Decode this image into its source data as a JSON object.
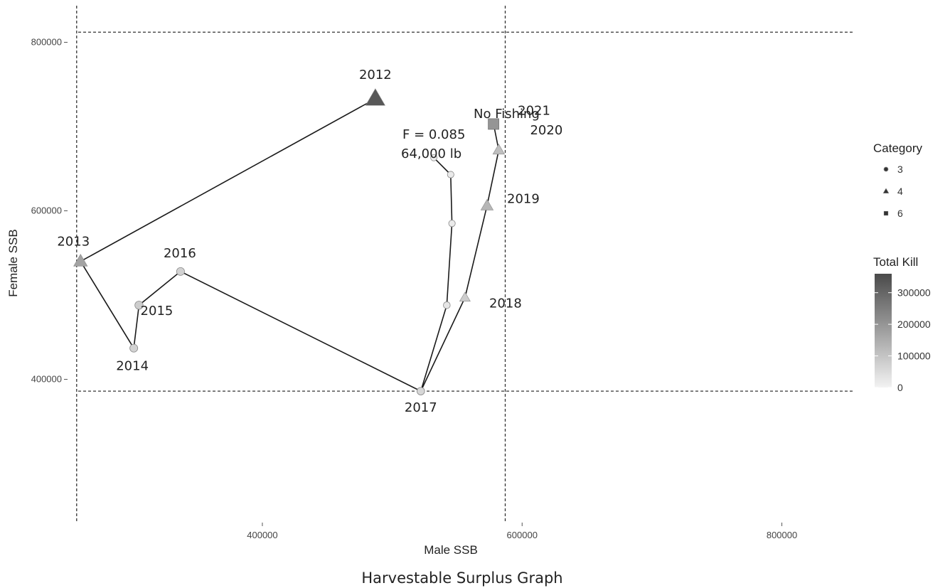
{
  "chart_data": {
    "type": "scatter",
    "title": "",
    "caption": "Harvestable Surplus Graph",
    "xlabel": "Male SSB",
    "ylabel": "Female SSB",
    "xlim": [
      250000,
      855000
    ],
    "ylim": [
      230000,
      835000
    ],
    "x_ticks": [
      {
        "value": 400000,
        "label": "400000"
      },
      {
        "value": 600000,
        "label": "600000"
      },
      {
        "value": 800000,
        "label": "800000"
      }
    ],
    "y_ticks": [
      {
        "value": 400000,
        "label": "400000"
      },
      {
        "value": 600000,
        "label": "600000"
      },
      {
        "value": 800000,
        "label": "800000"
      }
    ],
    "reference_lines": {
      "vertical": [
        257000,
        587000
      ],
      "horizontal": [
        386000,
        812000
      ]
    },
    "series": [
      {
        "points": [
          {
            "label": "2012",
            "x": 487000,
            "y": 733000,
            "category": "4",
            "kill": 330000
          },
          {
            "label": "2013",
            "x": 260000,
            "y": 540000,
            "category": "4",
            "kill": 170000
          },
          {
            "label": "2014",
            "x": 301000,
            "y": 437000,
            "category": "3",
            "kill": 70000
          },
          {
            "label": "2015",
            "x": 305000,
            "y": 488000,
            "category": "3",
            "kill": 80000
          },
          {
            "label": "2016",
            "x": 337000,
            "y": 528000,
            "category": "3",
            "kill": 70000
          },
          {
            "label": "2017",
            "x": 522000,
            "y": 386000,
            "category": "3",
            "kill": 60000
          }
        ]
      },
      {
        "points": [
          {
            "label": "2017",
            "x": 522000,
            "y": 386000,
            "category": "3",
            "kill": 60000
          },
          {
            "label": "",
            "x": 542000,
            "y": 488000,
            "category": "3",
            "kill": 30000
          },
          {
            "label": "",
            "x": 546000,
            "y": 585000,
            "category": "3",
            "kill": 20000
          },
          {
            "label": "",
            "x": 545000,
            "y": 643000,
            "category": "3",
            "kill": 20000
          },
          {
            "label": "",
            "x": 532000,
            "y": 663000,
            "category": "3",
            "kill": 10000
          }
        ]
      },
      {
        "points": [
          {
            "label": "2017",
            "x": 522000,
            "y": 386000,
            "category": "3",
            "kill": 60000
          },
          {
            "label": "2018",
            "x": 556000,
            "y": 497000,
            "category": "4",
            "kill": 80000
          },
          {
            "label": "2019",
            "x": 573000,
            "y": 606000,
            "category": "4",
            "kill": 130000
          },
          {
            "label": "2020",
            "x": 582000,
            "y": 672000,
            "category": "4",
            "kill": 110000
          },
          {
            "label": "2021",
            "x": 578000,
            "y": 703000,
            "category": "6",
            "kill": 200000
          }
        ]
      }
    ],
    "annotations": [
      {
        "text": "No Fishing"
      },
      {
        "text": "F = 0.085"
      },
      {
        "text": "64,000 lb"
      }
    ],
    "legend": {
      "category_title": "Category",
      "category_items": [
        {
          "label": "3",
          "shape": "circle"
        },
        {
          "label": "4",
          "shape": "triangle"
        },
        {
          "label": "6",
          "shape": "square"
        }
      ],
      "kill_title": "Total Kill",
      "kill_ticks": [
        {
          "value": 300000,
          "label": "300000"
        },
        {
          "value": 200000,
          "label": "200000"
        },
        {
          "value": 100000,
          "label": "100000"
        },
        {
          "value": 0,
          "label": "0"
        }
      ],
      "kill_range": [
        0,
        360000
      ],
      "placement": "right"
    },
    "grid": false,
    "colors": {
      "kill_low": "#f3f3f3",
      "kill_high": "#4a4a4a",
      "line": "#1a1a1a",
      "ref_line": "#333333"
    }
  }
}
